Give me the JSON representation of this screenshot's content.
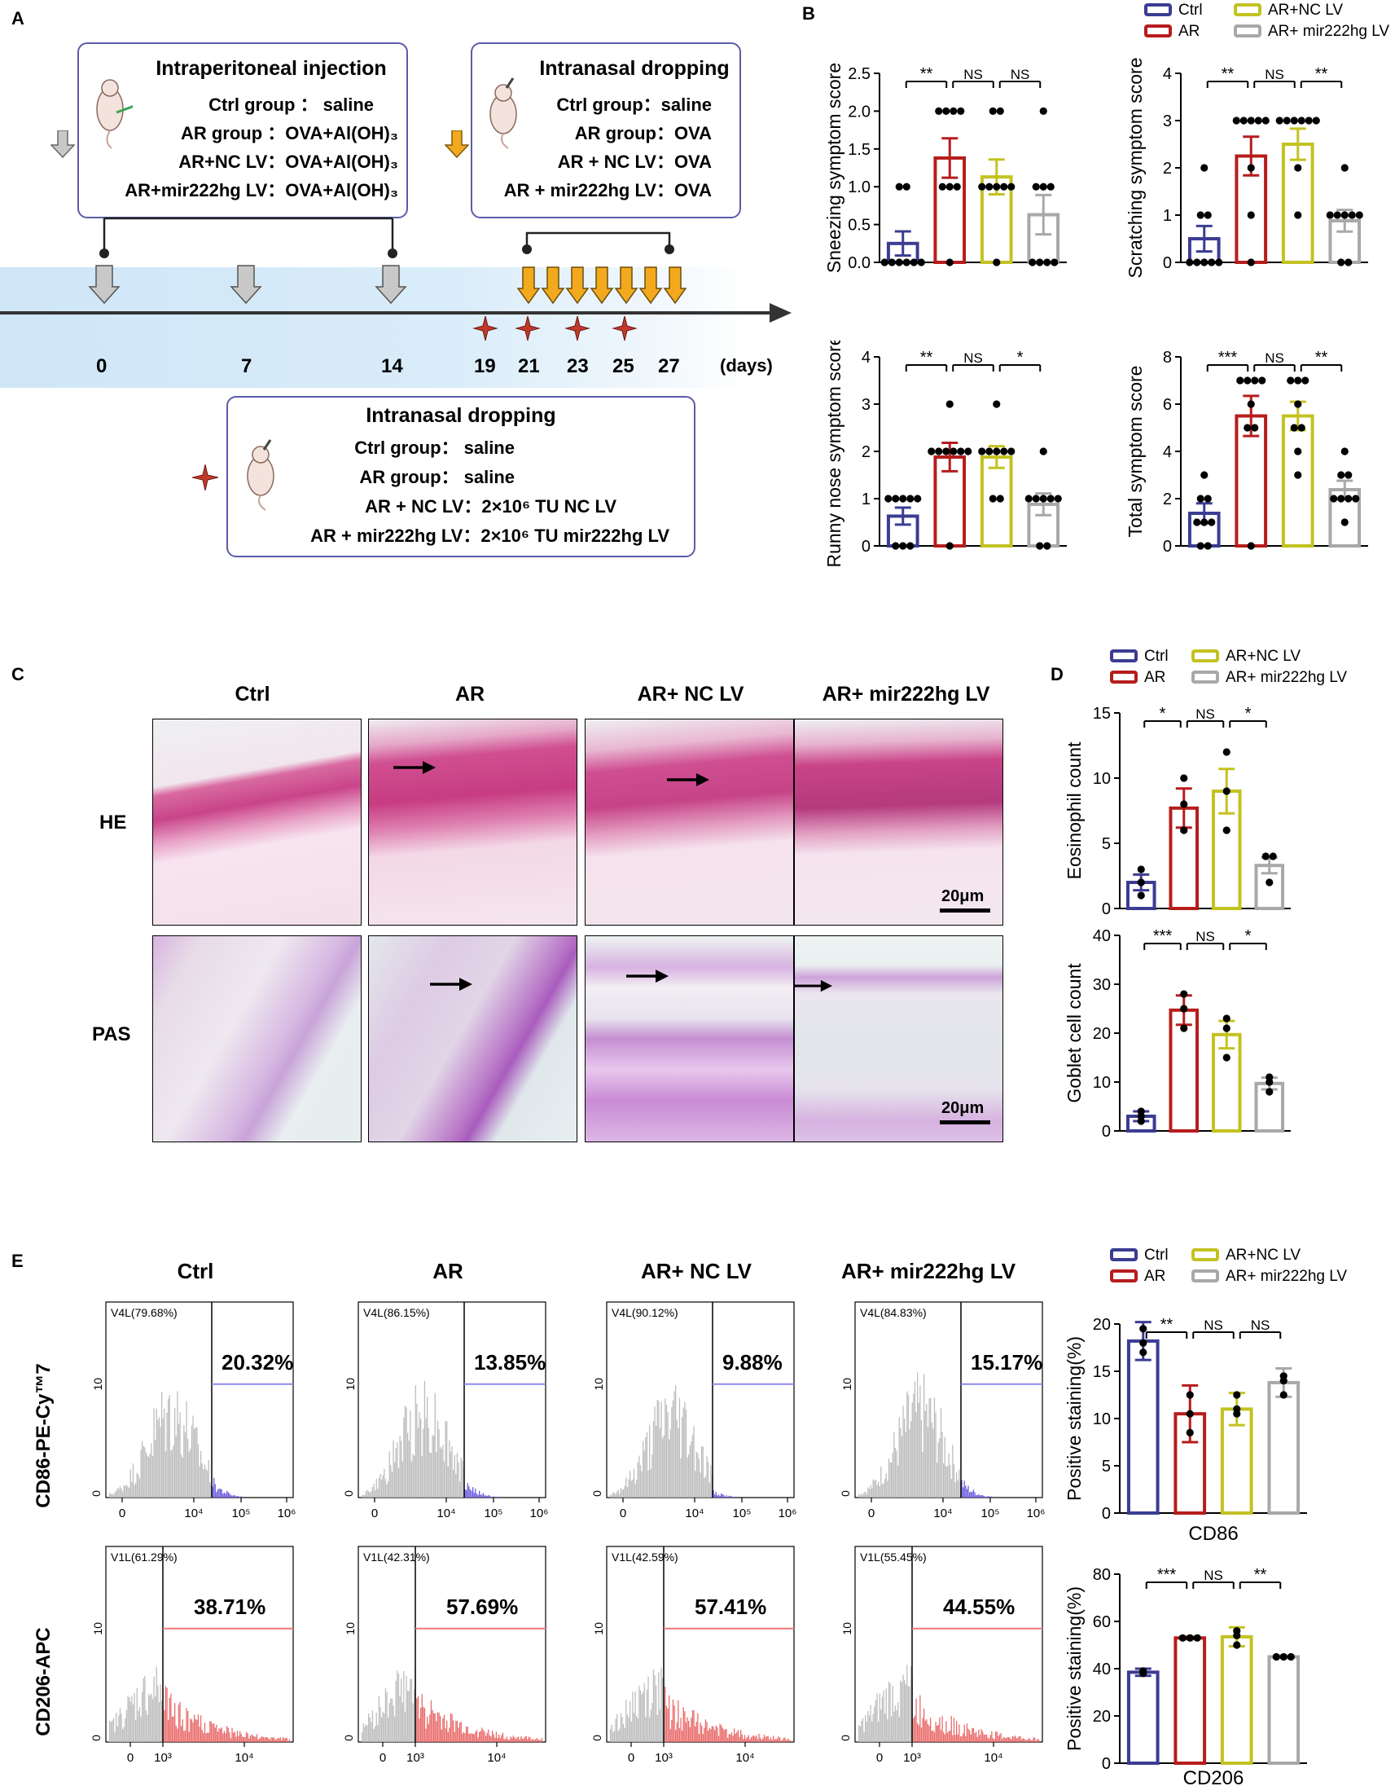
{
  "panels": {
    "a": "A",
    "b": "B",
    "c": "C",
    "d": "D",
    "e": "E"
  },
  "colors": {
    "ctrl": "#3b3c92",
    "ar": "#b71c1c",
    "nc": "#c3c221",
    "mir": "#a8a8a8",
    "box": "#5b5ba8",
    "timeline": "#d4e8f7",
    "arrow_gray": "#c8c8c8",
    "arrow_orange": "#f2a91d",
    "star": "#c0392b",
    "he": "#d44a8a",
    "pas": "#b78bcc"
  },
  "panel_a": {
    "box1": {
      "title": "Intraperitoneal injection",
      "lines": [
        "Ctrl group ： saline",
        "AR group ：OVA+Al(OH)₃",
        "AR+NC LV：OVA+Al(OH)₃",
        "AR+mir222hg LV：OVA+Al(OH)₃"
      ]
    },
    "box2": {
      "title": "Intranasal dropping",
      "lines": [
        "Ctrl group：saline",
        "AR group：OVA",
        "AR + NC LV：OVA",
        "AR + mir222hg LV：OVA"
      ]
    },
    "box3": {
      "title": "Intranasal dropping",
      "lines": [
        "Ctrl group： saline",
        "AR group： saline",
        "AR + NC LV：2×10⁶ TU  NC LV",
        "AR + mir222hg LV：2×10⁶ TU  mir222hg LV"
      ]
    },
    "days": [
      "0",
      "7",
      "14",
      "19",
      "21",
      "23",
      "25",
      "27"
    ],
    "days_unit": "(days)"
  },
  "legend": {
    "ctrl": "Ctrl",
    "ar": "AR",
    "nc": "AR+NC LV",
    "mir": "AR+ mir222hg LV"
  },
  "sig_ns": "NS",
  "panel_c": {
    "columns": [
      "Ctrl",
      "AR",
      "AR+ NC LV",
      "AR+ mir222hg LV"
    ],
    "rows": [
      "HE",
      "PAS"
    ],
    "scale": "20μm"
  },
  "panel_e": {
    "columns": [
      "Ctrl",
      "AR",
      "AR+ NC LV",
      "AR+ mir222hg LV"
    ],
    "row1_ylabel": "CD86-PE-Cy™7",
    "row2_ylabel": "CD206-APC",
    "row1_gates": [
      "V4L(79.68%)",
      "V4L(86.15%)",
      "V4L(90.12%)",
      "V4L(84.83%)"
    ],
    "row1_pcts": [
      "20.32%",
      "13.85%",
      "9.88%",
      "15.17%"
    ],
    "row2_gates": [
      "V1L(61.29%)",
      "V1L(42.31%)",
      "V1L(42.59%)",
      "V1L(55.45%)"
    ],
    "row2_pcts": [
      "38.71%",
      "57.69%",
      "57.41%",
      "44.55%"
    ],
    "y_tick": "10",
    "y_zero": "0",
    "x_ticks_top": [
      "0",
      "10⁴",
      "10⁵",
      "10⁶"
    ],
    "x_ticks_bottom": [
      "0",
      "10³",
      "10⁴"
    ]
  },
  "chart_data": [
    {
      "type": "bar",
      "id": "sneezing",
      "ylabel": "Sneezing symptom score",
      "ylim": [
        0,
        2.5
      ],
      "yticks": [
        "0.0",
        "0.5",
        "1.0",
        "1.5",
        "2.0",
        "2.5"
      ],
      "categories": [
        "Ctrl",
        "AR",
        "AR+NC LV",
        "AR+ mir222hg LV"
      ],
      "values": [
        0.25,
        1.38,
        1.13,
        0.63
      ],
      "errors": [
        0.16,
        0.26,
        0.23,
        0.26
      ],
      "points": [
        [
          0,
          0,
          0,
          0,
          0,
          0,
          1,
          1
        ],
        [
          0,
          1,
          1,
          1,
          2,
          2,
          2,
          2
        ],
        [
          0,
          1,
          1,
          1,
          1,
          1,
          2,
          2
        ],
        [
          0,
          0,
          0,
          0,
          1,
          1,
          1,
          2
        ]
      ],
      "sig": [
        "**",
        "NS",
        "NS"
      ]
    },
    {
      "type": "bar",
      "id": "scratching",
      "ylabel": "Scratching symptom score",
      "ylim": [
        0,
        4
      ],
      "yticks": [
        "0",
        "1",
        "2",
        "3",
        "4"
      ],
      "categories": [
        "Ctrl",
        "AR",
        "AR+NC LV",
        "AR+ mir222hg LV"
      ],
      "values": [
        0.5,
        2.25,
        2.5,
        0.88
      ],
      "errors": [
        0.27,
        0.41,
        0.33,
        0.23
      ],
      "points": [
        [
          0,
          0,
          0,
          0,
          0,
          1,
          1,
          2
        ],
        [
          0,
          1,
          2,
          3,
          3,
          3,
          3,
          3
        ],
        [
          1,
          2,
          3,
          3,
          3,
          3,
          3,
          3
        ],
        [
          0,
          0,
          1,
          1,
          1,
          1,
          1,
          2
        ]
      ],
      "sig": [
        "**",
        "NS",
        "**"
      ]
    },
    {
      "type": "bar",
      "id": "runny",
      "ylabel": "Runny nose symptom score",
      "ylim": [
        0,
        4
      ],
      "yticks": [
        "0",
        "1",
        "2",
        "3",
        "4"
      ],
      "categories": [
        "Ctrl",
        "AR",
        "AR+NC LV",
        "AR+ mir222hg LV"
      ],
      "values": [
        0.63,
        1.88,
        1.88,
        0.88
      ],
      "errors": [
        0.18,
        0.3,
        0.23,
        0.23
      ],
      "points": [
        [
          0,
          0,
          0,
          1,
          1,
          1,
          1,
          1
        ],
        [
          0,
          2,
          2,
          2,
          2,
          2,
          2,
          3
        ],
        [
          1,
          1,
          2,
          2,
          2,
          2,
          2,
          3
        ],
        [
          0,
          0,
          1,
          1,
          1,
          1,
          1,
          2
        ]
      ],
      "sig": [
        "**",
        "NS",
        "*"
      ]
    },
    {
      "type": "bar",
      "id": "total",
      "ylabel": "Total symptom score",
      "ylim": [
        0,
        8
      ],
      "yticks": [
        "0",
        "2",
        "4",
        "6",
        "8"
      ],
      "categories": [
        "Ctrl",
        "AR",
        "AR+NC LV",
        "AR+ mir222hg LV"
      ],
      "values": [
        1.38,
        5.5,
        5.5,
        2.38
      ],
      "errors": [
        0.42,
        0.85,
        0.6,
        0.38
      ],
      "points": [
        [
          0,
          0,
          1,
          1,
          1,
          2,
          2,
          3
        ],
        [
          0,
          5,
          5,
          6,
          7,
          7,
          7,
          7
        ],
        [
          3,
          4,
          5,
          5,
          6,
          7,
          7,
          7
        ],
        [
          1,
          2,
          2,
          2,
          2,
          3,
          3,
          4
        ]
      ],
      "sig": [
        "***",
        "NS",
        "**"
      ]
    },
    {
      "type": "bar",
      "id": "eos",
      "ylabel": "Eosinophil count",
      "ylim": [
        0,
        15
      ],
      "yticks": [
        "0",
        "5",
        "10",
        "15"
      ],
      "categories": [
        "Ctrl",
        "AR",
        "AR+NC LV",
        "AR+ mir222hg LV"
      ],
      "values": [
        2,
        7.7,
        9,
        3.3
      ],
      "errors": [
        0.6,
        1.5,
        1.7,
        0.6
      ],
      "points": [
        [
          1,
          2,
          3
        ],
        [
          6,
          8,
          10
        ],
        [
          6,
          9,
          12
        ],
        [
          2,
          4,
          4
        ]
      ],
      "sig": [
        "*",
        "NS",
        "*"
      ]
    },
    {
      "type": "bar",
      "id": "goblet",
      "ylabel": "Goblet cell count",
      "ylim": [
        0,
        40
      ],
      "yticks": [
        "0",
        "10",
        "20",
        "30",
        "40"
      ],
      "categories": [
        "Ctrl",
        "AR",
        "AR+NC LV",
        "AR+ mir222hg LV"
      ],
      "values": [
        3,
        24.7,
        19.7,
        9.7
      ],
      "errors": [
        1,
        3,
        2.8,
        1.2
      ],
      "points": [
        [
          2,
          3,
          4
        ],
        [
          21,
          25,
          28
        ],
        [
          15,
          21,
          23
        ],
        [
          8,
          10,
          11
        ]
      ],
      "sig": [
        "***",
        "NS",
        "*"
      ]
    },
    {
      "type": "bar",
      "id": "cd86",
      "ylabel": "Positive staining(%)",
      "xlabel": "CD86",
      "ylim": [
        0,
        20
      ],
      "yticks": [
        "0",
        "5",
        "10",
        "15",
        "20"
      ],
      "categories": [
        "Ctrl",
        "AR",
        "AR+NC LV",
        "AR+ mir222hg LV"
      ],
      "values": [
        18.2,
        10.5,
        11,
        13.8
      ],
      "errors": [
        2,
        3,
        1.7,
        1.5
      ],
      "points": [
        [
          17,
          18,
          19.5
        ],
        [
          8.5,
          10.5,
          12.5
        ],
        [
          10.5,
          11,
          12.5
        ],
        [
          12.5,
          14,
          14.5
        ]
      ],
      "sig": [
        "**",
        "NS",
        "NS"
      ]
    },
    {
      "type": "bar",
      "id": "cd206",
      "ylabel": "Positive staining(%)",
      "xlabel": "CD206",
      "ylim": [
        0,
        80
      ],
      "yticks": [
        "0",
        "20",
        "40",
        "60",
        "80"
      ],
      "categories": [
        "Ctrl",
        "AR",
        "AR+NC LV",
        "AR+ mir222hg LV"
      ],
      "values": [
        38.5,
        53,
        53.5,
        45
      ],
      "errors": [
        1.5,
        0.5,
        4,
        0.5
      ],
      "points": [
        [
          38,
          38.5,
          39
        ],
        [
          53,
          53,
          53
        ],
        [
          50,
          54,
          56
        ],
        [
          45,
          45,
          45
        ]
      ],
      "sig": [
        "***",
        "NS",
        "**"
      ]
    }
  ]
}
